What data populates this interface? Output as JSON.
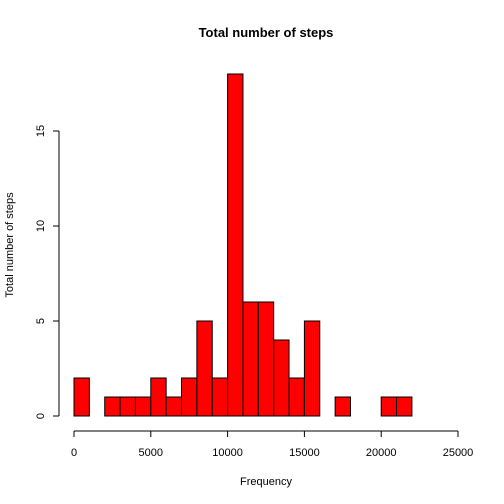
{
  "chart_data": {
    "type": "bar",
    "subtype": "histogram",
    "title": "Total number of steps",
    "xlabel": "Frequency",
    "ylabel": "Total number of steps",
    "bin_width": 1000,
    "bins": [
      {
        "start": 0,
        "end": 1000,
        "count": 2
      },
      {
        "start": 1000,
        "end": 2000,
        "count": 0
      },
      {
        "start": 2000,
        "end": 3000,
        "count": 1
      },
      {
        "start": 3000,
        "end": 4000,
        "count": 1
      },
      {
        "start": 4000,
        "end": 5000,
        "count": 1
      },
      {
        "start": 5000,
        "end": 6000,
        "count": 2
      },
      {
        "start": 6000,
        "end": 7000,
        "count": 1
      },
      {
        "start": 7000,
        "end": 8000,
        "count": 2
      },
      {
        "start": 8000,
        "end": 9000,
        "count": 5
      },
      {
        "start": 9000,
        "end": 10000,
        "count": 2
      },
      {
        "start": 10000,
        "end": 11000,
        "count": 18
      },
      {
        "start": 11000,
        "end": 12000,
        "count": 6
      },
      {
        "start": 12000,
        "end": 13000,
        "count": 6
      },
      {
        "start": 13000,
        "end": 14000,
        "count": 4
      },
      {
        "start": 14000,
        "end": 15000,
        "count": 2
      },
      {
        "start": 15000,
        "end": 16000,
        "count": 5
      },
      {
        "start": 16000,
        "end": 17000,
        "count": 0
      },
      {
        "start": 17000,
        "end": 18000,
        "count": 1
      },
      {
        "start": 18000,
        "end": 19000,
        "count": 0
      },
      {
        "start": 19000,
        "end": 20000,
        "count": 0
      },
      {
        "start": 20000,
        "end": 21000,
        "count": 1
      },
      {
        "start": 21000,
        "end": 22000,
        "count": 1
      }
    ],
    "xlim": [
      0,
      25000
    ],
    "ylim": [
      0,
      18
    ],
    "xticks": [
      0,
      5000,
      10000,
      15000,
      20000,
      25000
    ],
    "yticks": [
      0,
      5,
      10,
      15
    ],
    "bar_color": "#ff0000",
    "border_color": "#000000",
    "grid": false,
    "legend": "none"
  }
}
